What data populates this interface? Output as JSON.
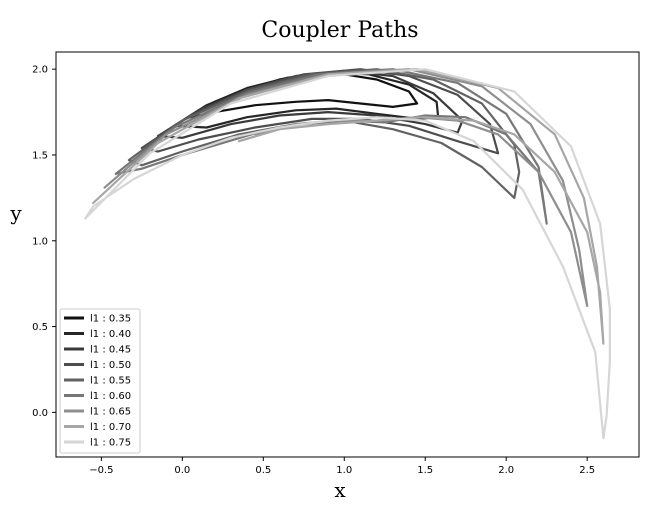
{
  "chart_data": {
    "type": "line",
    "title": "Coupler Paths",
    "xlabel": "x",
    "ylabel": "y",
    "xlim": [
      -0.78,
      2.82
    ],
    "ylim": [
      -0.26,
      2.1
    ],
    "xticks": [
      -0.5,
      0.0,
      0.5,
      1.0,
      1.5,
      2.0,
      2.5
    ],
    "xtick_labels": [
      "−0.5",
      "0.0",
      "0.5",
      "1.0",
      "1.5",
      "2.0",
      "2.5"
    ],
    "yticks": [
      0.0,
      0.5,
      1.0,
      1.5,
      2.0
    ],
    "ytick_labels": [
      "0.0",
      "0.5",
      "1.0",
      "1.5",
      "2.0"
    ],
    "grid": false,
    "legend_position": "lower-left",
    "series": [
      {
        "name": "l1 : 0.35",
        "color": "#111111",
        "x": [
          0.05,
          0.2,
          0.4,
          0.6,
          0.8,
          1.0,
          1.2,
          1.4,
          1.45,
          1.3,
          1.1,
          0.9,
          0.7,
          0.45,
          0.2,
          0.05,
          0.05
        ],
        "y": [
          1.72,
          1.81,
          1.88,
          1.94,
          1.97,
          1.97,
          1.94,
          1.87,
          1.8,
          1.78,
          1.8,
          1.82,
          1.81,
          1.79,
          1.75,
          1.72,
          1.72
        ]
      },
      {
        "name": "l1 : 0.40",
        "color": "#262626",
        "x": [
          -0.05,
          0.15,
          0.4,
          0.65,
          0.9,
          1.15,
          1.4,
          1.57,
          1.58,
          1.45,
          1.2,
          0.95,
          0.7,
          0.4,
          0.15,
          -0.05,
          -0.05
        ],
        "y": [
          1.67,
          1.79,
          1.89,
          1.95,
          1.98,
          1.97,
          1.91,
          1.81,
          1.72,
          1.71,
          1.74,
          1.77,
          1.76,
          1.72,
          1.66,
          1.67,
          1.67
        ]
      },
      {
        "name": "l1 : 0.45",
        "color": "#3a3a3a",
        "x": [
          -0.15,
          0.1,
          0.4,
          0.7,
          1.0,
          1.3,
          1.55,
          1.73,
          1.7,
          1.5,
          1.2,
          0.9,
          0.6,
          0.3,
          0.0,
          -0.15,
          -0.15
        ],
        "y": [
          1.61,
          1.76,
          1.88,
          1.96,
          1.99,
          1.96,
          1.86,
          1.7,
          1.63,
          1.68,
          1.73,
          1.75,
          1.73,
          1.68,
          1.6,
          1.61,
          1.61
        ]
      },
      {
        "name": "l1 : 0.50",
        "color": "#4d4d4d",
        "x": [
          -0.25,
          0.05,
          0.4,
          0.75,
          1.1,
          1.4,
          1.7,
          1.9,
          1.95,
          1.7,
          1.4,
          1.1,
          0.8,
          0.45,
          0.1,
          -0.15,
          -0.25,
          -0.25
        ],
        "y": [
          1.54,
          1.73,
          1.88,
          1.97,
          2.0,
          1.96,
          1.85,
          1.68,
          1.51,
          1.58,
          1.67,
          1.71,
          1.71,
          1.66,
          1.59,
          1.52,
          1.54,
          1.54
        ]
      },
      {
        "name": "l1 : 0.55",
        "color": "#626262",
        "x": [
          -0.33,
          0.0,
          0.4,
          0.8,
          1.2,
          1.55,
          1.85,
          2.05,
          2.08,
          2.05,
          1.85,
          1.6,
          1.3,
          1.0,
          0.7,
          0.35,
          0.0,
          -0.25,
          -0.33
        ],
        "y": [
          1.47,
          1.7,
          1.87,
          1.97,
          2.0,
          1.94,
          1.8,
          1.56,
          1.4,
          1.25,
          1.43,
          1.57,
          1.65,
          1.7,
          1.68,
          1.62,
          1.52,
          1.44,
          1.47
        ]
      },
      {
        "name": "l1 : 0.60",
        "color": "#777777",
        "x": [
          -0.41,
          -0.05,
          0.4,
          0.85,
          1.3,
          1.7,
          2.0,
          2.2,
          2.25,
          2.2,
          2.0,
          1.75,
          1.5,
          1.25
        ],
        "y": [
          1.39,
          1.66,
          1.86,
          1.97,
          2.0,
          1.92,
          1.74,
          1.43,
          1.1,
          1.4,
          1.62,
          1.72,
          1.73,
          1.69
        ],
        "tail_x": [
          1.25,
          1.0,
          0.75,
          0.5,
          0.25,
          0.0,
          -0.25,
          -0.41
        ],
        "tail_y": [
          1.69,
          1.7,
          1.68,
          1.64,
          1.57,
          1.5,
          1.42,
          1.39
        ]
      },
      {
        "name": "l1 : 0.65",
        "color": "#8e8e8e",
        "x": [
          -0.48,
          -0.1,
          0.4,
          0.9,
          1.4,
          1.85,
          2.15,
          2.35,
          2.45,
          2.5,
          2.4,
          2.2,
          1.95,
          1.7,
          1.45,
          1.2,
          0.95,
          0.7,
          0.45
        ],
        "y": [
          1.31,
          1.62,
          1.85,
          1.97,
          2.0,
          1.9,
          1.68,
          1.35,
          0.95,
          0.62,
          1.05,
          1.4,
          1.62,
          1.7,
          1.72,
          1.7,
          1.7,
          1.68,
          1.62
        ]
      },
      {
        "name": "l1 : 0.70",
        "color": "#a6a6a6",
        "x": [
          -0.55,
          -0.15,
          0.35,
          0.9,
          1.45,
          1.95,
          2.3,
          2.48,
          2.56,
          2.6,
          2.58,
          2.5,
          2.3,
          2.05,
          1.8,
          1.5,
          1.2,
          0.9,
          0.6,
          0.35
        ],
        "y": [
          1.22,
          1.57,
          1.83,
          1.97,
          2.0,
          1.89,
          1.62,
          1.25,
          0.85,
          0.4,
          0.7,
          1.05,
          1.4,
          1.62,
          1.7,
          1.72,
          1.7,
          1.68,
          1.65,
          1.58
        ]
      },
      {
        "name": "l1 : 0.75",
        "color": "#d6d6d6",
        "x": [
          -0.6,
          -0.2,
          0.3,
          0.9,
          1.5,
          2.05,
          2.4,
          2.58,
          2.64,
          2.64,
          2.62,
          2.6,
          2.55,
          2.35,
          2.1,
          1.8,
          1.5,
          1.2,
          0.9,
          0.6,
          0.3,
          0.0,
          -0.3,
          -0.55,
          -0.6
        ],
        "y": [
          1.13,
          1.51,
          1.8,
          1.96,
          2.0,
          1.87,
          1.55,
          1.1,
          0.6,
          0.3,
          -0.02,
          -0.15,
          0.35,
          0.85,
          1.3,
          1.58,
          1.7,
          1.72,
          1.7,
          1.66,
          1.6,
          1.5,
          1.36,
          1.2,
          1.13
        ]
      }
    ]
  }
}
